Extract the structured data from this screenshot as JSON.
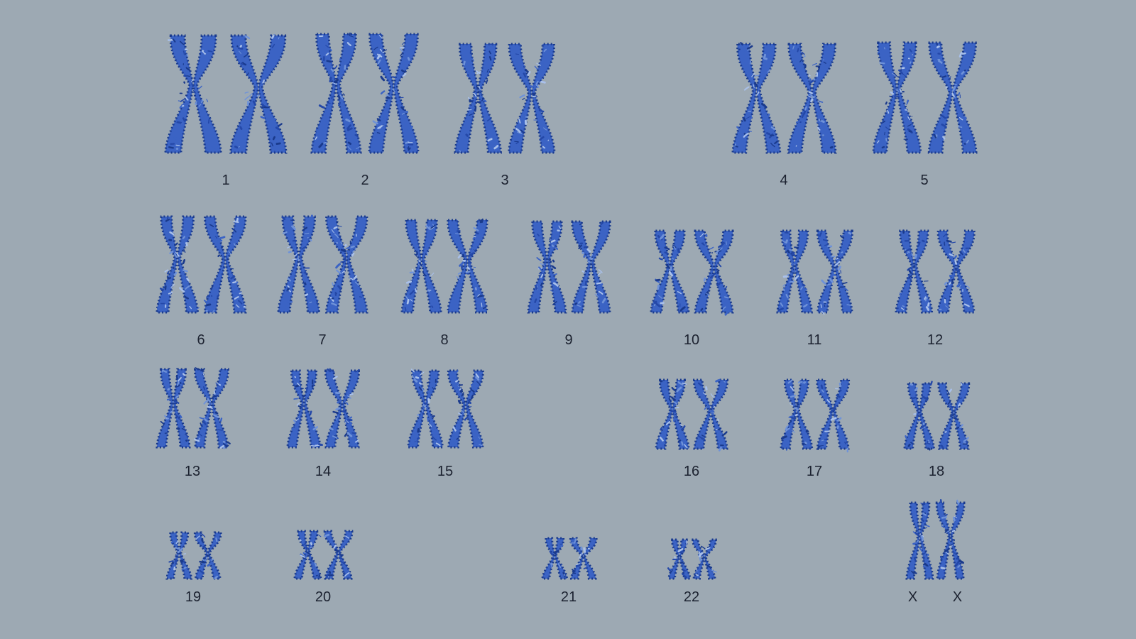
{
  "image": {
    "subject": "human-karyotype",
    "background_color": "#9da9b3",
    "chromosome_colors": [
      "#1a3a8c",
      "#2448a8",
      "#3b63c4",
      "#6f92d8",
      "#a9c0ea"
    ],
    "label_color": "#1c2230"
  },
  "karyotype": {
    "pairs": [
      {
        "label": "1"
      },
      {
        "label": "2"
      },
      {
        "label": "3"
      },
      {
        "label": "4"
      },
      {
        "label": "5"
      },
      {
        "label": "6"
      },
      {
        "label": "7"
      },
      {
        "label": "8"
      },
      {
        "label": "9"
      },
      {
        "label": "10"
      },
      {
        "label": "11"
      },
      {
        "label": "12"
      },
      {
        "label": "13"
      },
      {
        "label": "14"
      },
      {
        "label": "15"
      },
      {
        "label": "16"
      },
      {
        "label": "17"
      },
      {
        "label": "18"
      },
      {
        "label": "19"
      },
      {
        "label": "20"
      },
      {
        "label": "21"
      },
      {
        "label": "22"
      },
      {
        "label": "X X"
      }
    ]
  }
}
